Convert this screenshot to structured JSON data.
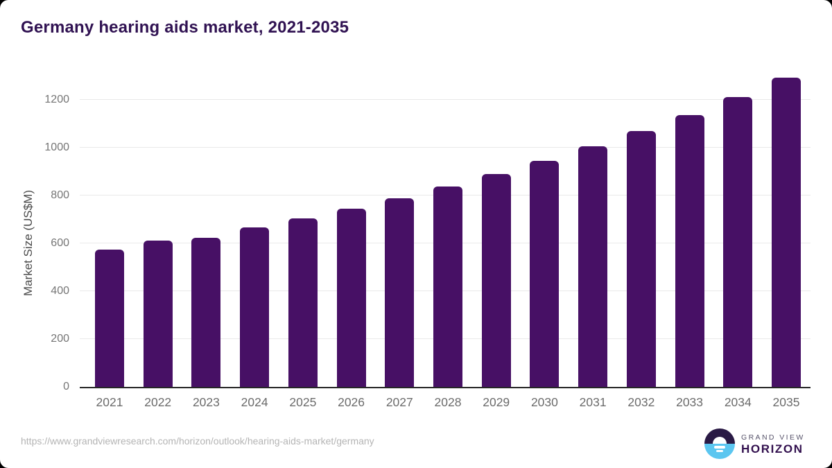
{
  "chart_data": {
    "type": "bar",
    "title": "Germany hearing aids market, 2021-2035",
    "categories": [
      "2021",
      "2022",
      "2023",
      "2024",
      "2025",
      "2026",
      "2027",
      "2028",
      "2029",
      "2030",
      "2031",
      "2032",
      "2033",
      "2034",
      "2035"
    ],
    "values": [
      572,
      611,
      622,
      666,
      703,
      743,
      787,
      837,
      889,
      943,
      1005,
      1068,
      1134,
      1210,
      1291
    ],
    "xlabel": "",
    "ylabel": "Market Size (US$M)",
    "ylim": [
      0,
      1300
    ],
    "yticks": [
      0,
      200,
      400,
      600,
      800,
      1000,
      1200
    ],
    "grid": true,
    "legend": null,
    "bar_color": "#471065"
  },
  "footer": {
    "source_url": "https://www.grandviewresearch.com/horizon/outlook/hearing-aids-market/germany",
    "logo": {
      "line1": "GRAND VIEW",
      "line2": "HORIZON"
    }
  },
  "colors": {
    "title": "#301252",
    "bar": "#471065",
    "gridline": "#e9e9e9",
    "axis_line": "#262626",
    "y_tick": "#757575",
    "x_tick": "#6b6b6b",
    "axis_label": "#4a4a4a",
    "url": "#b4b4b4",
    "logo_dark_half": "#2a1a45",
    "logo_blue_half": "#5bc6f0",
    "logo_text_gray": "#57536a",
    "logo_text_purple": "#32104e"
  }
}
